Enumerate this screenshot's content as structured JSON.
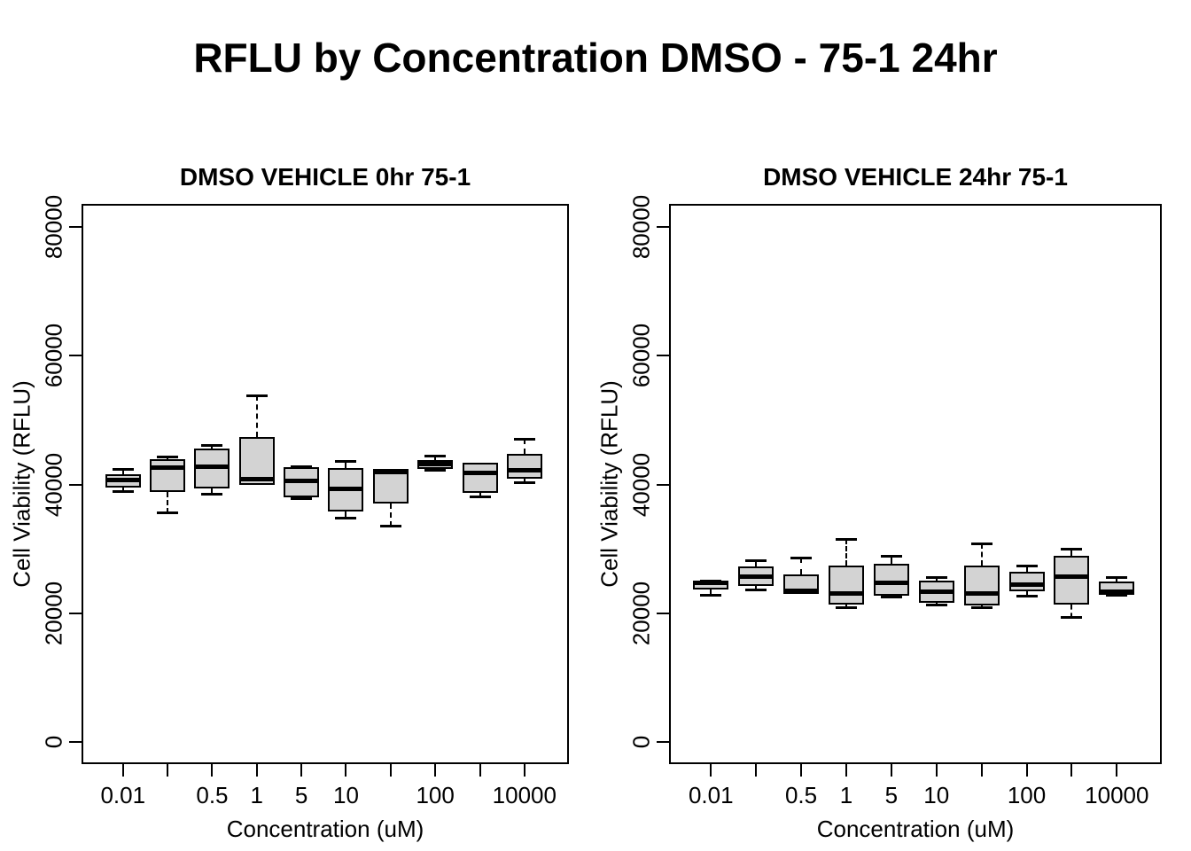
{
  "title": "RFLU by Concentration DMSO - 75-1 24hr",
  "box_fill_color": "#d3d3d3",
  "line_color": "#000000",
  "chart_data": [
    {
      "type": "boxplot",
      "title": "DMSO VEHICLE 0hr 75-1",
      "xlabel": "Concentration (uM)",
      "ylabel": "Cell Viability (RFLU)",
      "ylim": [
        -3100,
        83300
      ],
      "grid": false,
      "yticks": [
        0,
        20000,
        40000,
        60000,
        80000
      ],
      "ytick_labels": [
        "0",
        "20000",
        "40000",
        "60000",
        "80000"
      ],
      "xtick_labels": [
        "0.01",
        "",
        "0.5",
        "1",
        "5",
        "10",
        "",
        "100",
        "",
        "10000"
      ],
      "boxes": [
        {
          "min": 38800,
          "q1": 39600,
          "median": 40700,
          "q3": 41600,
          "max": 42500
        },
        {
          "min": 35500,
          "q1": 38800,
          "median": 42600,
          "q3": 44000,
          "max": 44400
        },
        {
          "min": 38400,
          "q1": 39400,
          "median": 42800,
          "q3": 45600,
          "max": 46200
        },
        {
          "min": 39900,
          "q1": 40000,
          "median": 40900,
          "q3": 47400,
          "max": 53800
        },
        {
          "min": 37800,
          "q1": 38000,
          "median": 40600,
          "q3": 42700,
          "max": 42900
        },
        {
          "min": 34700,
          "q1": 35800,
          "median": 39400,
          "q3": 42600,
          "max": 43700
        },
        {
          "min": 33500,
          "q1": 37100,
          "median": 41900,
          "q3": 42500,
          "max": 42500
        },
        {
          "min": 42100,
          "q1": 42500,
          "median": 43200,
          "q3": 43800,
          "max": 44500
        },
        {
          "min": 38000,
          "q1": 38700,
          "median": 41800,
          "q3": 43400,
          "max": 43500
        },
        {
          "min": 40300,
          "q1": 40900,
          "median": 42200,
          "q3": 44800,
          "max": 47100
        }
      ]
    },
    {
      "type": "boxplot",
      "title": "DMSO VEHICLE 24hr 75-1",
      "xlabel": "Concentration (uM)",
      "ylabel": "Cell Viability (RFLU)",
      "ylim": [
        -3100,
        83300
      ],
      "grid": false,
      "yticks": [
        0,
        20000,
        40000,
        60000,
        80000
      ],
      "ytick_labels": [
        "0",
        "20000",
        "40000",
        "60000",
        "80000"
      ],
      "xtick_labels": [
        "0.01",
        "",
        "0.5",
        "1",
        "5",
        "10",
        "",
        "100",
        "",
        "10000"
      ],
      "boxes": [
        {
          "min": 22800,
          "q1": 23700,
          "median": 24800,
          "q3": 24900,
          "max": 25100
        },
        {
          "min": 23600,
          "q1": 24300,
          "median": 25700,
          "q3": 27300,
          "max": 28300
        },
        {
          "min": 22900,
          "q1": 23000,
          "median": 23500,
          "q3": 26000,
          "max": 28700
        },
        {
          "min": 20800,
          "q1": 21400,
          "median": 23100,
          "q3": 27500,
          "max": 31600
        },
        {
          "min": 22500,
          "q1": 22700,
          "median": 24700,
          "q3": 27700,
          "max": 28900
        },
        {
          "min": 21300,
          "q1": 21600,
          "median": 23400,
          "q3": 25100,
          "max": 25700
        },
        {
          "min": 20900,
          "q1": 21300,
          "median": 23100,
          "q3": 27400,
          "max": 30900
        },
        {
          "min": 22600,
          "q1": 23400,
          "median": 24500,
          "q3": 26500,
          "max": 27500
        },
        {
          "min": 19300,
          "q1": 21400,
          "median": 25700,
          "q3": 28900,
          "max": 30000
        },
        {
          "min": 22700,
          "q1": 22900,
          "median": 23400,
          "q3": 25000,
          "max": 25700
        }
      ]
    }
  ]
}
